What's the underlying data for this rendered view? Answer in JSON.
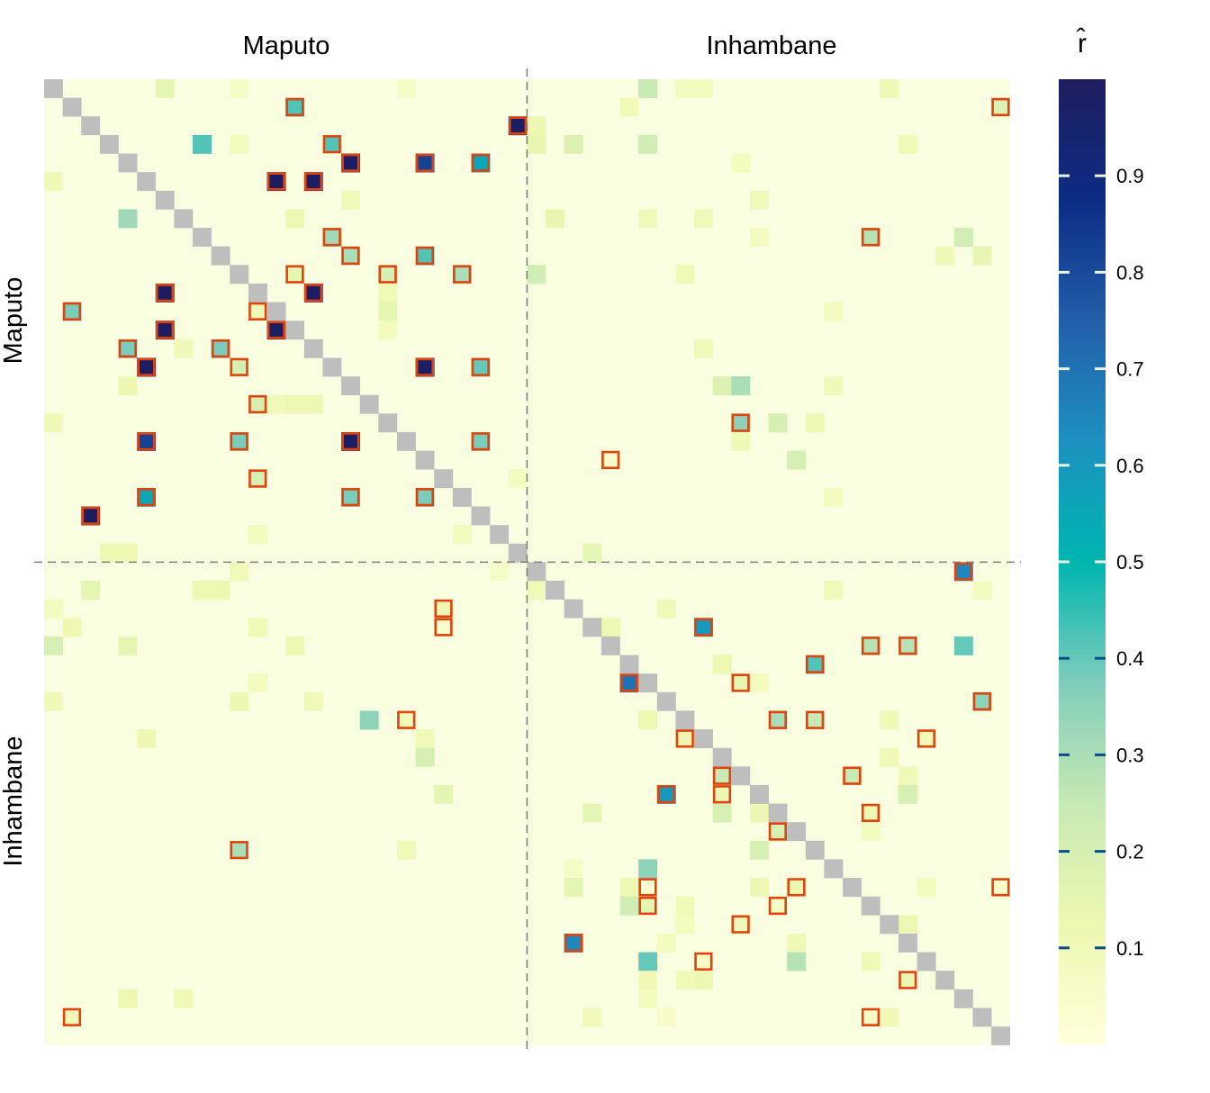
{
  "chart_data": {
    "type": "heatmap",
    "title": "",
    "xlabel": "",
    "ylabel": "",
    "n_per_group": 26,
    "groups": [
      "Maputo",
      "Inhambane"
    ],
    "top_labels": [
      "Maputo",
      "Inhambane"
    ],
    "left_labels": [
      "Maputo",
      "Inhambane"
    ],
    "legend": {
      "title": "r̂",
      "range": [
        0,
        1
      ],
      "ticks": [
        0.1,
        0.2,
        0.3,
        0.4,
        0.5,
        0.6,
        0.7,
        0.8,
        0.9
      ],
      "tick_labels": [
        "0.1",
        "0.2",
        "0.3",
        "0.4",
        "0.5",
        "0.6",
        "0.7",
        "0.8",
        "0.9"
      ],
      "colors": [
        "#ffffd9",
        "#edf8b1",
        "#c7e9b4",
        "#7fcdbb",
        "#00b5b0",
        "#1d91c0",
        "#225ea8",
        "#0c2c84",
        "#1f1d5e"
      ]
    },
    "colors": {
      "diagonal": "#bebebe",
      "highlight_border": "#e0440e",
      "divider": "#808080",
      "background_cell": "#fafee0"
    },
    "note_cells": "[row, col, value] for non-background cells; rows top-to-bottom, cols left-to-right; 0-25 Maputo, 26-51 Inhambane",
    "cells": [
      [
        0,
        6,
        0.15
      ],
      [
        0,
        10,
        0.06
      ],
      [
        0,
        19,
        0.06
      ],
      [
        0,
        32,
        0.25
      ],
      [
        0,
        34,
        0.08
      ],
      [
        0,
        35,
        0.08
      ],
      [
        0,
        45,
        0.12
      ],
      [
        1,
        13,
        0.42
      ],
      [
        1,
        31,
        0.1
      ],
      [
        1,
        51,
        0.18
      ],
      [
        2,
        25,
        0.99
      ],
      [
        2,
        26,
        0.12
      ],
      [
        3,
        8,
        0.42
      ],
      [
        3,
        10,
        0.08
      ],
      [
        3,
        26,
        0.14
      ],
      [
        3,
        28,
        0.18
      ],
      [
        3,
        32,
        0.22
      ],
      [
        3,
        46,
        0.1
      ],
      [
        4,
        16,
        0.99
      ],
      [
        4,
        20,
        0.82
      ],
      [
        4,
        23,
        0.55
      ],
      [
        4,
        37,
        0.08
      ],
      [
        5,
        12,
        0.99
      ],
      [
        5,
        14,
        0.99
      ],
      [
        5,
        0,
        0.1
      ],
      [
        6,
        16,
        0.1
      ],
      [
        6,
        38,
        0.1
      ],
      [
        7,
        4,
        0.32
      ],
      [
        7,
        13,
        0.12
      ],
      [
        7,
        27,
        0.14
      ],
      [
        7,
        32,
        0.1
      ],
      [
        7,
        35,
        0.1
      ],
      [
        8,
        15,
        0.32
      ],
      [
        8,
        44,
        0.28
      ],
      [
        8,
        49,
        0.22
      ],
      [
        8,
        38,
        0.08
      ],
      [
        9,
        16,
        0.3
      ],
      [
        9,
        20,
        0.42
      ],
      [
        9,
        48,
        0.1
      ],
      [
        9,
        50,
        0.14
      ],
      [
        10,
        13,
        0.15
      ],
      [
        10,
        18,
        0.2
      ],
      [
        10,
        22,
        0.3
      ],
      [
        10,
        26,
        0.22
      ],
      [
        10,
        34,
        0.1
      ],
      [
        11,
        6,
        0.99
      ],
      [
        11,
        14,
        0.99
      ],
      [
        11,
        18,
        0.1
      ],
      [
        12,
        1,
        0.38
      ],
      [
        12,
        11,
        0.1
      ],
      [
        12,
        18,
        0.15
      ],
      [
        12,
        42,
        0.08
      ],
      [
        13,
        6,
        0.99
      ],
      [
        13,
        12,
        0.99
      ],
      [
        13,
        18,
        0.08
      ],
      [
        14,
        4,
        0.38
      ],
      [
        14,
        9,
        0.38
      ],
      [
        14,
        7,
        0.1
      ],
      [
        14,
        35,
        0.1
      ],
      [
        15,
        5,
        0.99
      ],
      [
        15,
        10,
        0.2
      ],
      [
        15,
        20,
        0.99
      ],
      [
        15,
        23,
        0.4
      ],
      [
        16,
        4,
        0.12
      ],
      [
        16,
        36,
        0.18
      ],
      [
        16,
        37,
        0.3
      ],
      [
        16,
        42,
        0.1
      ],
      [
        17,
        11,
        0.2
      ],
      [
        17,
        12,
        0.1
      ],
      [
        17,
        13,
        0.12
      ],
      [
        17,
        14,
        0.12
      ],
      [
        18,
        0,
        0.1
      ],
      [
        18,
        37,
        0.35
      ],
      [
        18,
        39,
        0.2
      ],
      [
        18,
        41,
        0.12
      ],
      [
        19,
        5,
        0.82
      ],
      [
        19,
        10,
        0.38
      ],
      [
        19,
        16,
        0.99
      ],
      [
        19,
        23,
        0.38
      ],
      [
        19,
        37,
        0.1
      ],
      [
        20,
        30,
        0.04
      ],
      [
        20,
        40,
        0.2
      ],
      [
        21,
        11,
        0.2
      ],
      [
        21,
        25,
        0.08
      ],
      [
        22,
        5,
        0.55
      ],
      [
        22,
        16,
        0.38
      ],
      [
        22,
        20,
        0.38
      ],
      [
        22,
        42,
        0.08
      ],
      [
        23,
        2,
        0.99
      ],
      [
        24,
        11,
        0.08
      ],
      [
        24,
        22,
        0.08
      ],
      [
        25,
        3,
        0.12
      ],
      [
        25,
        4,
        0.12
      ],
      [
        25,
        29,
        0.15
      ],
      [
        26,
        10,
        0.1
      ],
      [
        26,
        24,
        0.06
      ],
      [
        26,
        49,
        0.65
      ],
      [
        27,
        2,
        0.15
      ],
      [
        27,
        8,
        0.12
      ],
      [
        27,
        9,
        0.12
      ],
      [
        27,
        26,
        0.1
      ],
      [
        27,
        42,
        0.1
      ],
      [
        27,
        50,
        0.08
      ],
      [
        28,
        0,
        0.08
      ],
      [
        28,
        21,
        0.12
      ],
      [
        28,
        33,
        0.1
      ],
      [
        29,
        1,
        0.12
      ],
      [
        29,
        11,
        0.1
      ],
      [
        29,
        30,
        0.12
      ],
      [
        29,
        35,
        0.6
      ],
      [
        30,
        0,
        0.2
      ],
      [
        30,
        4,
        0.15
      ],
      [
        30,
        13,
        0.12
      ],
      [
        30,
        44,
        0.28
      ],
      [
        30,
        46,
        0.28
      ],
      [
        30,
        49,
        0.4
      ],
      [
        31,
        36,
        0.12
      ],
      [
        31,
        41,
        0.42
      ],
      [
        32,
        11,
        0.08
      ],
      [
        32,
        31,
        0.7
      ],
      [
        32,
        38,
        0.08
      ],
      [
        33,
        0,
        0.1
      ],
      [
        33,
        10,
        0.12
      ],
      [
        33,
        14,
        0.1
      ],
      [
        33,
        50,
        0.35
      ],
      [
        34,
        17,
        0.35
      ],
      [
        34,
        19,
        0.1
      ],
      [
        34,
        32,
        0.12
      ],
      [
        34,
        39,
        0.3
      ],
      [
        34,
        41,
        0.25
      ],
      [
        34,
        45,
        0.1
      ],
      [
        35,
        5,
        0.12
      ],
      [
        35,
        20,
        0.1
      ],
      [
        35,
        34,
        0.12
      ],
      [
        35,
        47,
        0.1
      ],
      [
        36,
        20,
        0.2
      ],
      [
        36,
        45,
        0.1
      ],
      [
        37,
        36,
        0.25
      ],
      [
        37,
        43,
        0.25
      ],
      [
        37,
        46,
        0.1
      ],
      [
        38,
        21,
        0.15
      ],
      [
        38,
        33,
        0.6
      ],
      [
        38,
        46,
        0.2
      ],
      [
        39,
        29,
        0.15
      ],
      [
        39,
        36,
        0.2
      ],
      [
        39,
        38,
        0.12
      ],
      [
        39,
        44,
        0.12
      ],
      [
        40,
        39,
        0.2
      ],
      [
        40,
        44,
        0.08
      ],
      [
        41,
        19,
        0.1
      ],
      [
        41,
        38,
        0.2
      ],
      [
        41,
        41,
        0.1
      ],
      [
        42,
        32,
        0.35
      ],
      [
        42,
        28,
        0.06
      ],
      [
        43,
        28,
        0.15
      ],
      [
        43,
        31,
        0.12
      ],
      [
        43,
        38,
        0.12
      ],
      [
        43,
        40,
        0.12
      ],
      [
        43,
        47,
        0.08
      ],
      [
        44,
        31,
        0.22
      ],
      [
        44,
        34,
        0.1
      ],
      [
        44,
        39,
        0.06
      ],
      [
        45,
        34,
        0.08
      ],
      [
        45,
        37,
        0.1
      ],
      [
        45,
        46,
        0.12
      ],
      [
        46,
        28,
        0.65
      ],
      [
        46,
        33,
        0.08
      ],
      [
        46,
        40,
        0.1
      ],
      [
        47,
        32,
        0.4
      ],
      [
        47,
        40,
        0.28
      ],
      [
        47,
        44,
        0.1
      ],
      [
        48,
        32,
        0.1
      ],
      [
        48,
        34,
        0.1
      ],
      [
        48,
        35,
        0.12
      ],
      [
        49,
        4,
        0.12
      ],
      [
        49,
        7,
        0.1
      ],
      [
        49,
        32,
        0.08
      ],
      [
        50,
        1,
        0.1
      ],
      [
        50,
        29,
        0.1
      ],
      [
        50,
        33,
        0.05
      ],
      [
        50,
        45,
        0.1
      ]
    ],
    "highlighted": [
      [
        1,
        13
      ],
      [
        1,
        51
      ],
      [
        2,
        25
      ],
      [
        3,
        15
      ],
      [
        4,
        16
      ],
      [
        4,
        20
      ],
      [
        4,
        23
      ],
      [
        5,
        12
      ],
      [
        5,
        14
      ],
      [
        8,
        15
      ],
      [
        8,
        44
      ],
      [
        9,
        16
      ],
      [
        9,
        20
      ],
      [
        10,
        13
      ],
      [
        10,
        18
      ],
      [
        10,
        22
      ],
      [
        11,
        6
      ],
      [
        11,
        14
      ],
      [
        12,
        1
      ],
      [
        12,
        11
      ],
      [
        13,
        6
      ],
      [
        13,
        12
      ],
      [
        14,
        4
      ],
      [
        14,
        9
      ],
      [
        15,
        5
      ],
      [
        15,
        10
      ],
      [
        15,
        20
      ],
      [
        15,
        23
      ],
      [
        17,
        11
      ],
      [
        19,
        5
      ],
      [
        19,
        10
      ],
      [
        19,
        16
      ],
      [
        19,
        23
      ],
      [
        21,
        11
      ],
      [
        22,
        5
      ],
      [
        22,
        16
      ],
      [
        22,
        20
      ],
      [
        23,
        2
      ],
      [
        18,
        37
      ],
      [
        20,
        30
      ],
      [
        26,
        49
      ],
      [
        28,
        21
      ],
      [
        30,
        44
      ],
      [
        30,
        46
      ],
      [
        31,
        41
      ],
      [
        32,
        31
      ],
      [
        32,
        37
      ],
      [
        33,
        50
      ],
      [
        34,
        39
      ],
      [
        34,
        41
      ],
      [
        35,
        34
      ],
      [
        35,
        47
      ],
      [
        37,
        36
      ],
      [
        37,
        43
      ],
      [
        38,
        33
      ],
      [
        38,
        36
      ],
      [
        39,
        44
      ],
      [
        40,
        39
      ],
      [
        41,
        10
      ],
      [
        43,
        32
      ],
      [
        43,
        40
      ],
      [
        43,
        51
      ],
      [
        44,
        32
      ],
      [
        44,
        39
      ],
      [
        45,
        37
      ],
      [
        46,
        28
      ],
      [
        47,
        35
      ],
      [
        48,
        46
      ],
      [
        50,
        1
      ],
      [
        50,
        44
      ],
      [
        29,
        35
      ],
      [
        29,
        21
      ],
      [
        34,
        19
      ],
      [
        28,
        21
      ]
    ],
    "highlight_values": {
      "3,15": 0.42,
      "29,35": 0.6,
      "32,37": 0.15,
      "38,36": 0.12,
      "41,10": 0.3,
      "43,51": 0.05,
      "47,35": 0.06,
      "48,46": 0.12,
      "50,44": 0.06,
      "35,34": 0.12,
      "37,43": 0.25,
      "44,32": 0.15,
      "40,39": 0.2
    }
  }
}
